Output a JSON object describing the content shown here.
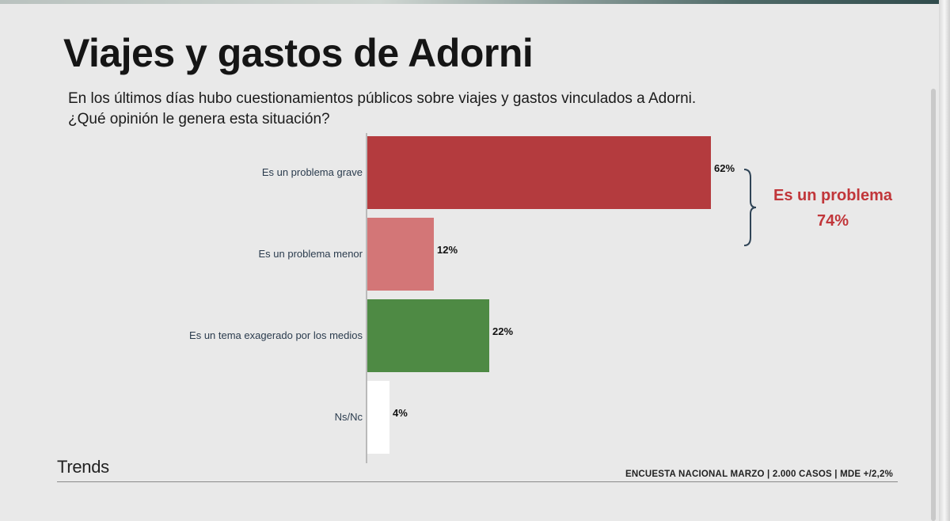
{
  "title": "Viajes y gastos de Adorni",
  "subtitle": {
    "line1": "En los últimos días hubo cuestionamientos públicos sobre viajes y gastos vinculados a Adorni.",
    "line2": "¿Qué opinión le genera esta situación?"
  },
  "brand": "Trends",
  "source": "ENCUESTA NACIONAL MARZO | 2.000 CASOS | MDE +/2,2%",
  "chart_data": {
    "type": "bar",
    "orientation": "horizontal",
    "categories": [
      "Es un problema grave",
      "Es un problema menor",
      "Es un tema exagerado por los medios",
      "Ns/Nc"
    ],
    "values": [
      62,
      12,
      22,
      4
    ],
    "value_labels": [
      "62%",
      "12%",
      "22%",
      "4%"
    ],
    "colors": [
      "#b43b3e",
      "#d37677",
      "#4e8a44",
      "#ffffff"
    ],
    "xlim": [
      0,
      62
    ],
    "grid": false,
    "annotation": {
      "groups": [
        "Es un problema grave",
        "Es un problema menor"
      ],
      "label_line1": "Es un problema",
      "label_line2": "74%",
      "bracket_color": "#2f4456",
      "text_color": "#c1363a"
    }
  }
}
